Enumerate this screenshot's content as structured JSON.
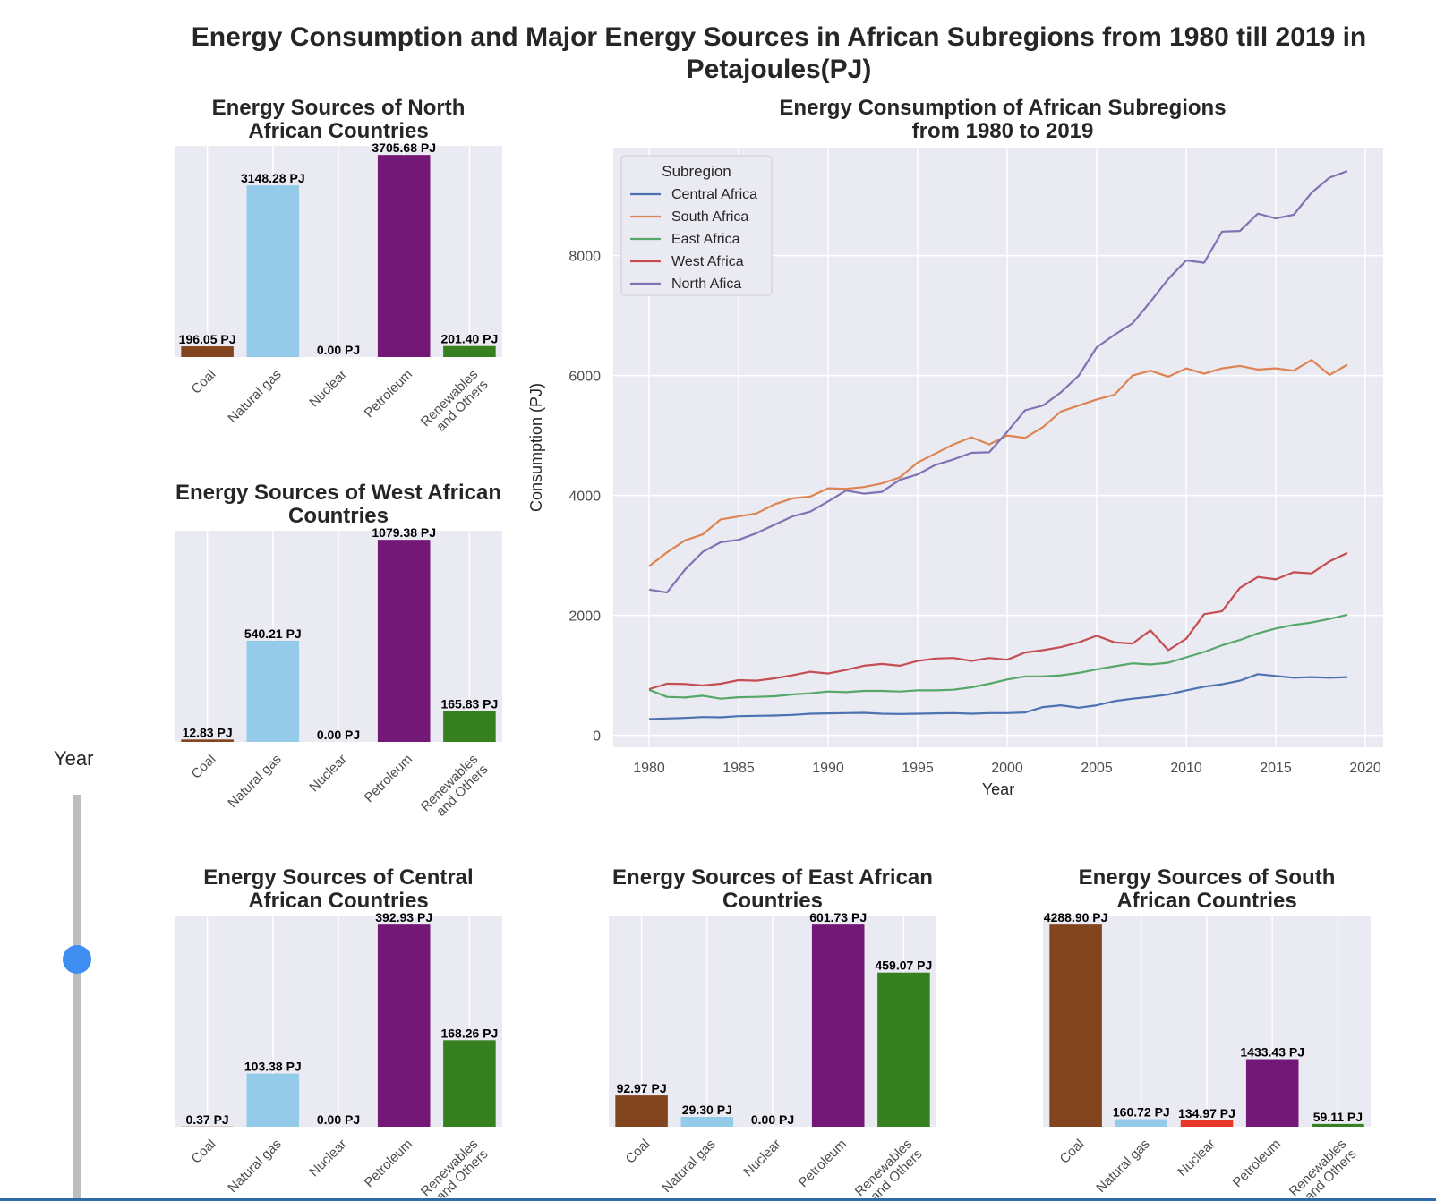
{
  "main_title": "Energy Consumption and Major Energy Sources in African Subregions from 1980 till 2019 in Petajoules(PJ)",
  "slider": {
    "label": "Year",
    "accent": "#3d8ef0"
  },
  "colors": {
    "panel_bg": "#eaeaf2",
    "grid": "#ffffff",
    "Coal": "#83451e",
    "Natural gas": "#94cbe8",
    "Nuclear": "#e8352a",
    "Petroleum": "#731876",
    "Renewables and Others": "#37801f"
  },
  "chart_data": [
    {
      "type": "bar",
      "title": "Energy Sources of North African Countries",
      "categories": [
        "Coal",
        "Natural gas",
        "Nuclear",
        "Petroleum",
        "Renewables and Others"
      ],
      "values": [
        196.05,
        3148.28,
        0.0,
        3705.68,
        201.4
      ],
      "data_labels": [
        "196.05 PJ",
        "3148.28 PJ",
        "0.00 PJ",
        "3705.68 PJ",
        "201.40 PJ"
      ]
    },
    {
      "type": "bar",
      "title": "Energy Sources of West African Countries",
      "categories": [
        "Coal",
        "Natural gas",
        "Nuclear",
        "Petroleum",
        "Renewables and Others"
      ],
      "values": [
        12.83,
        540.21,
        0.0,
        1079.38,
        165.83
      ],
      "data_labels": [
        "12.83 PJ",
        "540.21 PJ",
        "0.00 PJ",
        "1079.38 PJ",
        "165.83 PJ"
      ]
    },
    {
      "type": "line",
      "title": "Energy Consumption of African Subregions from 1980 to 2019",
      "xlabel": "Year",
      "ylabel": "Consumption (PJ)",
      "xlim": [
        1978,
        2021
      ],
      "ylim": [
        -200,
        9800
      ],
      "xticks": [
        1980,
        1985,
        1990,
        1995,
        2000,
        2005,
        2010,
        2015,
        2020
      ],
      "yticks": [
        0,
        2000,
        4000,
        6000,
        8000
      ],
      "legend_title": "Subregion",
      "legend_position": "upper-left",
      "x": [
        1980,
        1981,
        1982,
        1983,
        1984,
        1985,
        1986,
        1987,
        1988,
        1989,
        1990,
        1991,
        1992,
        1993,
        1994,
        1995,
        1996,
        1997,
        1998,
        1999,
        2000,
        2001,
        2002,
        2003,
        2004,
        2005,
        2006,
        2007,
        2008,
        2009,
        2010,
        2011,
        2012,
        2013,
        2014,
        2015,
        2016,
        2017,
        2018,
        2019
      ],
      "series": [
        {
          "name": "Central Africa",
          "color": "#4c72b0",
          "values": [
            270,
            280,
            290,
            305,
            300,
            320,
            325,
            330,
            340,
            360,
            365,
            370,
            375,
            360,
            355,
            360,
            365,
            370,
            360,
            370,
            370,
            380,
            470,
            500,
            460,
            500,
            570,
            610,
            640,
            680,
            750,
            810,
            850,
            910,
            1020,
            990,
            960,
            970,
            960,
            970
          ]
        },
        {
          "name": "South Africa",
          "color": "#dd8452",
          "values": [
            2820,
            3050,
            3250,
            3350,
            3600,
            3650,
            3700,
            3850,
            3950,
            3980,
            4120,
            4110,
            4140,
            4200,
            4300,
            4550,
            4700,
            4850,
            4970,
            4850,
            5000,
            4960,
            5140,
            5400,
            5500,
            5600,
            5680,
            6000,
            6080,
            5980,
            6120,
            6030,
            6120,
            6160,
            6100,
            6120,
            6080,
            6260,
            6010,
            6180
          ]
        },
        {
          "name": "East Africa",
          "color": "#55a868",
          "values": [
            760,
            640,
            630,
            660,
            610,
            635,
            640,
            650,
            680,
            700,
            730,
            720,
            740,
            740,
            730,
            750,
            750,
            760,
            800,
            860,
            930,
            980,
            980,
            1000,
            1040,
            1100,
            1150,
            1200,
            1180,
            1210,
            1300,
            1390,
            1500,
            1590,
            1700,
            1780,
            1840,
            1880,
            1940,
            2010
          ]
        },
        {
          "name": "West Africa",
          "color": "#c44e52",
          "values": [
            770,
            860,
            855,
            830,
            860,
            920,
            910,
            950,
            1000,
            1060,
            1030,
            1090,
            1160,
            1190,
            1160,
            1240,
            1280,
            1290,
            1240,
            1290,
            1260,
            1380,
            1420,
            1470,
            1550,
            1660,
            1550,
            1530,
            1750,
            1420,
            1610,
            2020,
            2070,
            2460,
            2640,
            2600,
            2720,
            2700,
            2900,
            3040
          ]
        },
        {
          "name": "North Afica",
          "color": "#8172b3",
          "values": [
            2430,
            2380,
            2760,
            3060,
            3220,
            3260,
            3370,
            3510,
            3650,
            3730,
            3900,
            4080,
            4030,
            4060,
            4260,
            4350,
            4510,
            4600,
            4710,
            4720,
            5060,
            5420,
            5500,
            5720,
            6000,
            6470,
            6680,
            6870,
            7230,
            7610,
            7920,
            7880,
            8400,
            8410,
            8700,
            8620,
            8680,
            9050,
            9300,
            9410
          ]
        }
      ]
    },
    {
      "type": "bar",
      "title": "Energy Sources of Central African Countries",
      "categories": [
        "Coal",
        "Natural gas",
        "Nuclear",
        "Petroleum",
        "Renewables and Others"
      ],
      "values": [
        0.37,
        103.38,
        0.0,
        392.93,
        168.26
      ],
      "data_labels": [
        "0.37 PJ",
        "103.38 PJ",
        "0.00 PJ",
        "392.93 PJ",
        "168.26 PJ"
      ]
    },
    {
      "type": "bar",
      "title": "Energy Sources of East African Countries",
      "categories": [
        "Coal",
        "Natural gas",
        "Nuclear",
        "Petroleum",
        "Renewables and Others"
      ],
      "values": [
        92.97,
        29.3,
        0.0,
        601.73,
        459.07
      ],
      "data_labels": [
        "92.97 PJ",
        "29.30 PJ",
        "0.00 PJ",
        "601.73 PJ",
        "459.07 PJ"
      ]
    },
    {
      "type": "bar",
      "title": "Energy Sources of South African Countries",
      "categories": [
        "Coal",
        "Natural gas",
        "Nuclear",
        "Petroleum",
        "Renewables and Others"
      ],
      "values": [
        4288.9,
        160.72,
        134.97,
        1433.43,
        59.11
      ],
      "data_labels": [
        "4288.90 PJ",
        "160.72 PJ",
        "134.97 PJ",
        "1433.43 PJ",
        "59.11 PJ"
      ]
    }
  ]
}
